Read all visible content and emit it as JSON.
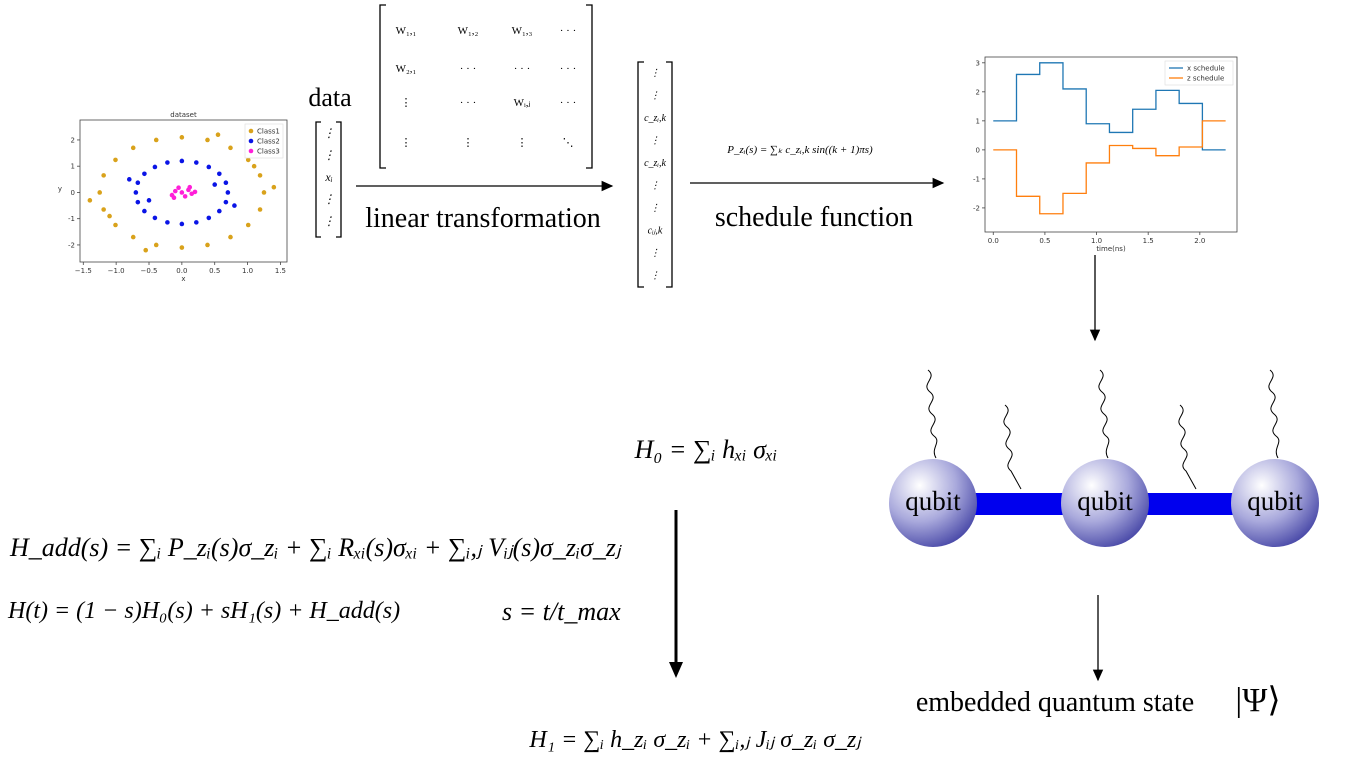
{
  "labels": {
    "data": "data",
    "linear": "linear transformation",
    "schedule": "schedule function",
    "output": "embedded quantum state",
    "psi": "|Ψ⟩"
  },
  "matrix": {
    "rows": [
      [
        "W₁,₁",
        "W₁,₂",
        "W₁,₃",
        "· · ·"
      ],
      [
        "W₂,₁",
        "· · ·",
        "· · ·",
        "· · ·"
      ],
      [
        "⋮",
        "· · ·",
        "Wᵢ,ⱼ",
        "· · ·"
      ],
      [
        "⋮",
        "⋮",
        "⋮",
        "⋱"
      ]
    ]
  },
  "x_vector": [
    "⋮",
    "⋮",
    "xᵢ",
    "⋮",
    "⋮"
  ],
  "c_vector": [
    "⋮",
    "⋮",
    "c_zᵢ,k",
    "⋮",
    "c_zᵢ,k",
    "⋮",
    "⋮",
    "cᵢⱼ,k",
    "⋮",
    "⋮"
  ],
  "formulas": {
    "p": "P_zᵢ(s) = ∑ₖ c_zᵢ,k sin((k + 1)πs)",
    "h0": "H₀ = ∑ᵢ hₓᵢ σₓᵢ",
    "hadd": "H_add(s) = ∑ᵢ P_zᵢ(s)σ_zᵢ + ∑ᵢ Rₓᵢ(s)σₓᵢ + ∑ᵢ,ⱼ Vᵢⱼ(s)σ_zᵢσ_zⱼ",
    "ht": "H(t) = (1 − s)H₀(s) + sH₁(s) + H_add(s)",
    "s": "s = t/t_max",
    "h1": "H₁ = ∑ᵢ h_zᵢ σ_zᵢ + ∑ᵢ,ⱼ Jᵢⱼ σ_zᵢ σ_zⱼ"
  },
  "qubits": [
    "qubit",
    "qubit",
    "qubit"
  ],
  "chart_data": [
    {
      "type": "scatter",
      "title": "dataset",
      "x_label": "x",
      "y_label": "y",
      "xlim": [
        -1.55,
        1.6
      ],
      "ylim": [
        -2.65,
        2.76
      ],
      "xticks": [
        {
          "value": -1.5,
          "label": "−1.5"
        },
        {
          "value": -1,
          "label": "−1.0"
        },
        {
          "value": -0.5,
          "label": "−0.5"
        },
        {
          "value": 0,
          "label": "0.0"
        },
        {
          "value": 0.5,
          "label": "0.5"
        },
        {
          "value": 1,
          "label": "1.0"
        },
        {
          "value": 1.5,
          "label": "1.5"
        }
      ],
      "yticks": [
        -2,
        -1,
        0,
        1,
        2
      ],
      "legend": "upper right",
      "series": [
        {
          "name": "Class1",
          "color": "#d9a21b",
          "x": [
            1.25,
            1.19,
            1.01,
            0.74,
            0.39,
            0,
            -0.39,
            -0.74,
            -1.01,
            -1.19,
            -1.25,
            -1.19,
            -1.01,
            -0.74,
            -0.39,
            0,
            0.39,
            0.74,
            1.01,
            1.19,
            1.4,
            -1.4,
            0.55,
            -0.55,
            1.1,
            -1.1
          ],
          "values": [
            0,
            0.65,
            1.24,
            1.7,
            2.0,
            2.1,
            2.0,
            1.7,
            1.24,
            0.65,
            0,
            -0.65,
            -1.24,
            -1.7,
            -2.0,
            -2.1,
            -2.0,
            -1.7,
            -1.24,
            -0.65,
            0.2,
            -0.3,
            2.2,
            -2.2,
            1.0,
            -0.9
          ]
        },
        {
          "name": "Class2",
          "color": "#0a14e6",
          "x": [
            0.7,
            0.67,
            0.57,
            0.41,
            0.22,
            0,
            -0.22,
            -0.41,
            -0.57,
            -0.67,
            -0.7,
            -0.67,
            -0.57,
            -0.41,
            -0.22,
            0,
            0.22,
            0.41,
            0.57,
            0.67,
            0.5,
            -0.5,
            0.8,
            -0.8
          ],
          "values": [
            0,
            0.37,
            0.71,
            0.97,
            1.14,
            1.2,
            1.14,
            0.97,
            0.71,
            0.37,
            0,
            -0.37,
            -0.71,
            -0.97,
            -1.14,
            -1.2,
            -1.14,
            -0.97,
            -0.71,
            -0.37,
            0.3,
            -0.3,
            -0.5,
            0.5
          ]
        },
        {
          "name": "Class3",
          "color": "#ff1fd8",
          "x": [
            0,
            0.1,
            -0.1,
            0.15,
            -0.15,
            0.05,
            -0.05,
            0.12,
            -0.12,
            0.2
          ],
          "values": [
            0,
            0.1,
            0.05,
            -0.05,
            -0.1,
            -0.15,
            0.18,
            0.2,
            -0.2,
            0.02
          ]
        }
      ]
    },
    {
      "type": "line",
      "drawstyle": "steps-post",
      "x_label": "time(ns)",
      "xlim": [
        -0.08,
        2.36
      ],
      "ylim": [
        -2.83,
        3.2
      ],
      "xticks": [
        {
          "value": 0,
          "label": "0.0"
        },
        {
          "value": 0.5,
          "label": "0.5"
        },
        {
          "value": 1,
          "label": "1.0"
        },
        {
          "value": 1.5,
          "label": "1.5"
        },
        {
          "value": 2,
          "label": "2.0"
        }
      ],
      "yticks": [
        -2,
        -1,
        0,
        1,
        2,
        3
      ],
      "legend": "upper right",
      "x": [
        0,
        0.225,
        0.45,
        0.675,
        0.9,
        1.125,
        1.35,
        1.575,
        1.8,
        2.025,
        2.25
      ],
      "series": [
        {
          "name": "x schedule",
          "color": "#1f77b4",
          "values": [
            1.0,
            2.6,
            3.0,
            2.1,
            0.9,
            0.6,
            1.4,
            2.05,
            1.6,
            0.0,
            0.0
          ]
        },
        {
          "name": "z schedule",
          "color": "#ff7f0e",
          "values": [
            0.0,
            -1.6,
            -2.2,
            -1.5,
            -0.45,
            0.15,
            0.05,
            -0.2,
            0.1,
            1.0,
            1.0
          ]
        }
      ]
    }
  ]
}
